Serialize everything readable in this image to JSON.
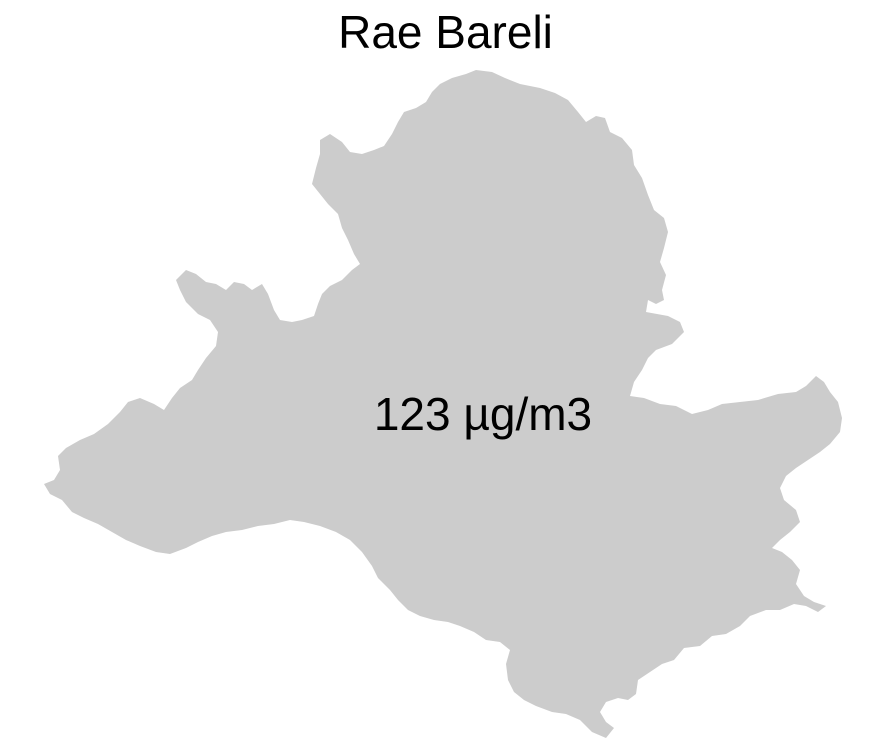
{
  "map": {
    "title": "Rae Bareli",
    "region": {
      "name": "Rae Bareli",
      "value_label": "123 µg/m3",
      "fill_color": "#cccccc"
    }
  }
}
